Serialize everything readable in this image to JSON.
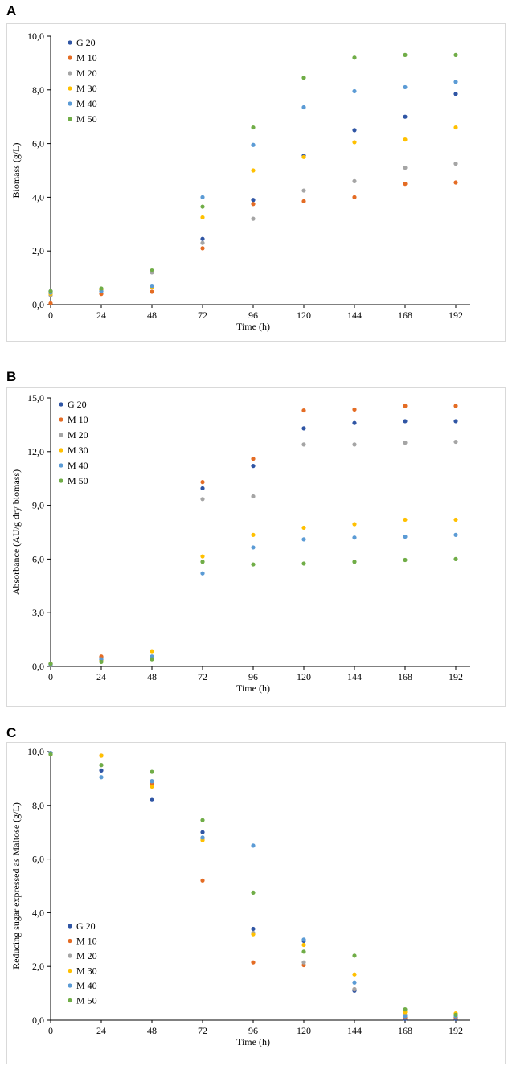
{
  "colors": {
    "G 20": "#2f55a4",
    "M 10": "#e46c24",
    "M 20": "#a5a5a5",
    "M 30": "#ffc000",
    "M 40": "#5b9bd5",
    "M 50": "#70ad47"
  },
  "chart_data": [
    {
      "panel": "A",
      "type": "scatter",
      "xlabel": "Time (h)",
      "ylabel": "Biomass (g/L)",
      "x": [
        0,
        24,
        48,
        72,
        96,
        120,
        144,
        168,
        192
      ],
      "xticks": [
        "0",
        "24",
        "48",
        "72",
        "96",
        "120",
        "144",
        "168",
        "192"
      ],
      "ylim": [
        0,
        10
      ],
      "yticks": [
        "0,0",
        "2,0",
        "4,0",
        "6,0",
        "8,0",
        "10,0"
      ],
      "series": [
        {
          "name": "G 20",
          "values": [
            0.5,
            0.55,
            0.65,
            2.45,
            3.9,
            5.55,
            6.5,
            7.0,
            7.85
          ]
        },
        {
          "name": "M 10",
          "values": [
            0.05,
            0.4,
            0.48,
            2.1,
            3.75,
            3.85,
            4.0,
            4.5,
            4.55
          ]
        },
        {
          "name": "M 20",
          "values": [
            0.35,
            0.5,
            1.2,
            2.3,
            3.2,
            4.25,
            4.6,
            5.1,
            5.25
          ]
        },
        {
          "name": "M 30",
          "values": [
            0.4,
            0.55,
            0.65,
            3.25,
            5.0,
            5.5,
            6.05,
            6.15,
            6.6
          ]
        },
        {
          "name": "M 40",
          "values": [
            0.45,
            0.5,
            0.7,
            4.0,
            5.95,
            7.35,
            7.95,
            8.1,
            8.3
          ]
        },
        {
          "name": "M 50",
          "values": [
            0.5,
            0.6,
            1.3,
            3.65,
            6.6,
            8.45,
            9.2,
            9.3,
            9.3
          ]
        }
      ]
    },
    {
      "panel": "B",
      "type": "scatter",
      "xlabel": "Time (h)",
      "ylabel": "Absorbance (AU/g dry biomass)",
      "x": [
        0,
        24,
        48,
        72,
        96,
        120,
        144,
        168,
        192
      ],
      "xticks": [
        "0",
        "24",
        "48",
        "72",
        "96",
        "120",
        "144",
        "168",
        "192"
      ],
      "ylim": [
        0,
        15
      ],
      "yticks": [
        "0,0",
        "3,0",
        "6,0",
        "9,0",
        "12,0",
        "15,0"
      ],
      "series": [
        {
          "name": "G 20",
          "values": [
            0.15,
            0.5,
            0.5,
            9.95,
            11.2,
            13.3,
            13.6,
            13.7,
            13.7
          ]
        },
        {
          "name": "M 10",
          "values": [
            0.1,
            0.55,
            0.5,
            10.3,
            11.6,
            14.3,
            14.35,
            14.55,
            14.55
          ]
        },
        {
          "name": "M 20",
          "values": [
            0.1,
            0.4,
            0.45,
            9.35,
            9.5,
            12.4,
            12.4,
            12.5,
            12.55
          ]
        },
        {
          "name": "M 30",
          "values": [
            0.15,
            0.35,
            0.85,
            6.15,
            7.35,
            7.75,
            7.95,
            8.2,
            8.2
          ]
        },
        {
          "name": "M 40",
          "values": [
            0.1,
            0.4,
            0.55,
            5.2,
            6.65,
            7.1,
            7.2,
            7.25,
            7.35
          ]
        },
        {
          "name": "M 50",
          "values": [
            0.15,
            0.25,
            0.4,
            5.85,
            5.7,
            5.75,
            5.85,
            5.95,
            6.0
          ]
        }
      ]
    },
    {
      "panel": "C",
      "type": "scatter",
      "xlabel": "Time (h)",
      "ylabel": "Reducing sugar expressed as Maltose (g/L)",
      "x": [
        0,
        24,
        48,
        72,
        96,
        120,
        144,
        168,
        192
      ],
      "xticks": [
        "0",
        "24",
        "48",
        "72",
        "96",
        "120",
        "144",
        "168",
        "192"
      ],
      "ylim": [
        0,
        10
      ],
      "yticks": [
        "0,0",
        "2,0",
        "4,0",
        "6,0",
        "8,0",
        "10,0"
      ],
      "series": [
        {
          "name": "G 20",
          "values": [
            9.95,
            9.3,
            8.2,
            7.0,
            3.4,
            2.95,
            1.1,
            0.05,
            0.05
          ]
        },
        {
          "name": "M 10",
          "values": [
            9.95,
            9.85,
            8.8,
            5.2,
            2.15,
            2.05,
            1.15,
            0.1,
            0.1
          ]
        },
        {
          "name": "M 20",
          "values": [
            9.95,
            9.5,
            8.9,
            6.75,
            3.25,
            2.15,
            1.15,
            0.2,
            0.2
          ]
        },
        {
          "name": "M 30",
          "values": [
            9.9,
            9.85,
            8.7,
            6.7,
            3.2,
            2.8,
            1.7,
            0.3,
            0.25
          ]
        },
        {
          "name": "M 40",
          "values": [
            9.95,
            9.05,
            8.9,
            6.8,
            6.5,
            3.0,
            1.4,
            0.15,
            0.15
          ]
        },
        {
          "name": "M 50",
          "values": [
            9.9,
            9.5,
            9.25,
            7.45,
            4.75,
            2.55,
            2.4,
            0.4,
            0.2
          ]
        }
      ]
    }
  ]
}
